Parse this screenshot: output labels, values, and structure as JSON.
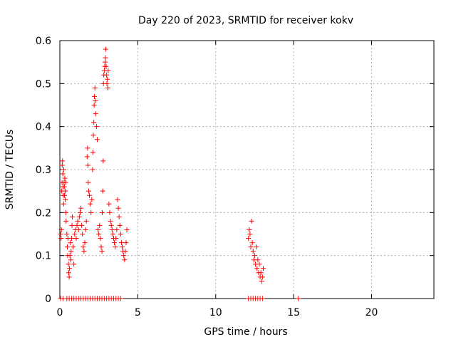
{
  "chart_data": {
    "type": "scatter",
    "title": "Day 220 of 2023, SRMTID for receiver kokv",
    "xlabel": "GPS time / hours",
    "ylabel": "SRMTID / TECUs",
    "xlim": [
      0,
      24
    ],
    "ylim": [
      0,
      0.6
    ],
    "x_ticks": [
      0,
      5,
      10,
      15,
      20
    ],
    "y_ticks": [
      0,
      0.1,
      0.2,
      0.3,
      0.4,
      0.5,
      0.6
    ],
    "x_tick_labels": [
      "0",
      "5",
      "10",
      "15",
      "20"
    ],
    "y_tick_labels": [
      "0",
      "0.1",
      "0.2",
      "0.3",
      "0.4",
      "0.5",
      "0.6"
    ],
    "grid": true,
    "marker": "+",
    "series": [
      {
        "name": "SRMTID",
        "color": "#ff0000",
        "points": [
          [
            0.05,
            0.15
          ],
          [
            0.08,
            0.14
          ],
          [
            0.1,
            0.16
          ],
          [
            0.12,
            0.25
          ],
          [
            0.14,
            0.27
          ],
          [
            0.15,
            0.31
          ],
          [
            0.17,
            0.32
          ],
          [
            0.19,
            0.29
          ],
          [
            0.2,
            0.26
          ],
          [
            0.22,
            0.24
          ],
          [
            0.24,
            0.22
          ],
          [
            0.25,
            0.3
          ],
          [
            0.27,
            0.27
          ],
          [
            0.29,
            0.26
          ],
          [
            0.3,
            0.24
          ],
          [
            0.32,
            0.28
          ],
          [
            0.34,
            0.25
          ],
          [
            0.35,
            0.23
          ],
          [
            0.37,
            0.27
          ],
          [
            0.39,
            0.2
          ],
          [
            0.4,
            0.18
          ],
          [
            0.45,
            0.15
          ],
          [
            0.48,
            0.12
          ],
          [
            0.5,
            0.1
          ],
          [
            0.52,
            0.14
          ],
          [
            0.55,
            0.08
          ],
          [
            0.57,
            0.06
          ],
          [
            0.6,
            0.05
          ],
          [
            0.62,
            0.07
          ],
          [
            0.65,
            0.1
          ],
          [
            0.68,
            0.13
          ],
          [
            0.7,
            0.09
          ],
          [
            0.72,
            0.11
          ],
          [
            0.75,
            0.14
          ],
          [
            0.78,
            0.17
          ],
          [
            0.8,
            0.19
          ],
          [
            0.85,
            0.12
          ],
          [
            0.9,
            0.08
          ],
          [
            0.95,
            0.15
          ],
          [
            1.0,
            0.16
          ],
          [
            1.05,
            0.14
          ],
          [
            1.1,
            0.17
          ],
          [
            1.15,
            0.18
          ],
          [
            1.2,
            0.16
          ],
          [
            1.25,
            0.19
          ],
          [
            1.3,
            0.2
          ],
          [
            1.35,
            0.21
          ],
          [
            1.4,
            0.17
          ],
          [
            1.45,
            0.15
          ],
          [
            1.5,
            0.12
          ],
          [
            1.55,
            0.11
          ],
          [
            1.6,
            0.13
          ],
          [
            1.65,
            0.16
          ],
          [
            1.7,
            0.18
          ],
          [
            1.75,
            0.33
          ],
          [
            1.78,
            0.35
          ],
          [
            1.8,
            0.31
          ],
          [
            1.82,
            0.27
          ],
          [
            1.85,
            0.25
          ],
          [
            1.9,
            0.24
          ],
          [
            1.95,
            0.22
          ],
          [
            2.0,
            0.2
          ],
          [
            2.05,
            0.23
          ],
          [
            2.1,
            0.3
          ],
          [
            2.12,
            0.34
          ],
          [
            2.15,
            0.38
          ],
          [
            2.18,
            0.41
          ],
          [
            2.2,
            0.45
          ],
          [
            2.22,
            0.47
          ],
          [
            2.25,
            0.49
          ],
          [
            2.28,
            0.46
          ],
          [
            2.3,
            0.43
          ],
          [
            2.35,
            0.4
          ],
          [
            2.4,
            0.37
          ],
          [
            2.45,
            0.16
          ],
          [
            2.5,
            0.15
          ],
          [
            2.55,
            0.17
          ],
          [
            2.6,
            0.14
          ],
          [
            2.65,
            0.12
          ],
          [
            2.7,
            0.11
          ],
          [
            2.72,
            0.2
          ],
          [
            2.75,
            0.25
          ],
          [
            2.78,
            0.32
          ],
          [
            2.8,
            0.5
          ],
          [
            2.82,
            0.52
          ],
          [
            2.85,
            0.53
          ],
          [
            2.88,
            0.54
          ],
          [
            2.9,
            0.55
          ],
          [
            2.92,
            0.56
          ],
          [
            2.95,
            0.58
          ],
          [
            2.97,
            0.54
          ],
          [
            3.0,
            0.52
          ],
          [
            3.02,
            0.5
          ],
          [
            3.05,
            0.51
          ],
          [
            3.08,
            0.49
          ],
          [
            3.1,
            0.53
          ],
          [
            3.15,
            0.22
          ],
          [
            3.2,
            0.2
          ],
          [
            3.25,
            0.18
          ],
          [
            3.3,
            0.17
          ],
          [
            3.35,
            0.16
          ],
          [
            3.4,
            0.15
          ],
          [
            3.45,
            0.14
          ],
          [
            3.5,
            0.13
          ],
          [
            3.55,
            0.12
          ],
          [
            3.6,
            0.14
          ],
          [
            3.65,
            0.16
          ],
          [
            3.7,
            0.23
          ],
          [
            3.75,
            0.21
          ],
          [
            3.8,
            0.19
          ],
          [
            3.85,
            0.17
          ],
          [
            3.9,
            0.15
          ],
          [
            3.95,
            0.13
          ],
          [
            4.0,
            0.12
          ],
          [
            4.05,
            0.11
          ],
          [
            4.1,
            0.1
          ],
          [
            4.15,
            0.09
          ],
          [
            4.2,
            0.11
          ],
          [
            4.25,
            0.13
          ],
          [
            4.3,
            0.16
          ],
          [
            12.1,
            0.14
          ],
          [
            12.15,
            0.16
          ],
          [
            12.2,
            0.15
          ],
          [
            12.25,
            0.12
          ],
          [
            12.3,
            0.18
          ],
          [
            12.35,
            0.13
          ],
          [
            12.4,
            0.11
          ],
          [
            12.45,
            0.09
          ],
          [
            12.5,
            0.1
          ],
          [
            12.55,
            0.08
          ],
          [
            12.6,
            0.12
          ],
          [
            12.65,
            0.07
          ],
          [
            12.7,
            0.09
          ],
          [
            12.75,
            0.06
          ],
          [
            12.8,
            0.08
          ],
          [
            12.85,
            0.05
          ],
          [
            12.9,
            0.06
          ],
          [
            12.95,
            0.04
          ],
          [
            13.0,
            0.05
          ],
          [
            13.05,
            0.07
          ]
        ],
        "zero_points_x": [
          0.05,
          0.2,
          0.45,
          0.6,
          0.75,
          0.9,
          1.05,
          1.2,
          1.35,
          1.5,
          1.65,
          1.8,
          1.95,
          2.1,
          2.25,
          2.4,
          2.55,
          2.7,
          2.85,
          3.0,
          3.15,
          3.3,
          3.45,
          3.6,
          3.75,
          3.9,
          12.1,
          12.25,
          12.4,
          12.55,
          12.7,
          12.85,
          13.0,
          15.3
        ]
      }
    ]
  }
}
